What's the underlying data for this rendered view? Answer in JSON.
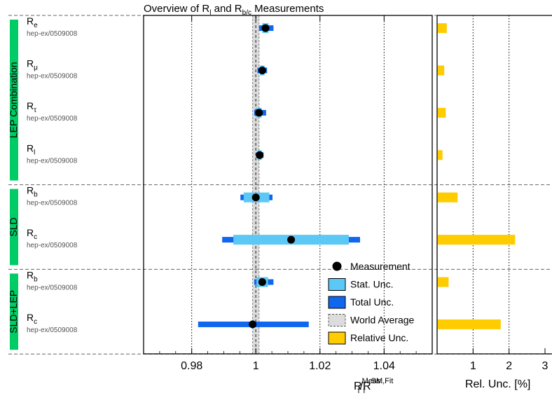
{
  "chart_data": {
    "type": "forest",
    "title_parts": {
      "pre": "Overview of R",
      "sub1": "l",
      "mid": " and R",
      "sub2": "b/c",
      "post": " Measurements"
    },
    "main_axis": {
      "xlim": [
        0.965,
        1.055
      ],
      "ticks": [
        0.98,
        1,
        1.02,
        1.04
      ],
      "tick_labels": [
        "0.98",
        "1",
        "1.02",
        "1.04"
      ],
      "xlabel": {
        "base1": "R",
        "sup1": "Meas.",
        "sub1": "f",
        "slash": "/",
        "base2": "R",
        "sup2": "SM,Fit",
        "sub2": "f"
      }
    },
    "world_average": {
      "center": 1.0,
      "lo": 0.999,
      "hi": 1.001
    },
    "rel_axis": {
      "xlim": [
        0,
        3
      ],
      "ticks": [
        1,
        2,
        3
      ],
      "tick_labels": [
        "1",
        "2",
        "3"
      ],
      "xlabel": "Rel. Unc. [%]"
    },
    "groups": [
      {
        "name": "LEP Combination",
        "start": 0,
        "end": 4
      },
      {
        "name": "SLD",
        "start": 4,
        "end": 6
      },
      {
        "name": "SLD+LEP",
        "start": 6,
        "end": 8
      }
    ],
    "rows": [
      {
        "base": "R",
        "sub": "e",
        "ref": "hep-ex/0509008",
        "value": 1.003,
        "stat": [
          1.002,
          1.004
        ],
        "total": [
          1.001,
          1.0055
        ],
        "rel": 0.25
      },
      {
        "base": "R",
        "sub": "μ",
        "ref": "hep-ex/0509008",
        "value": 1.002,
        "stat": [
          1.0013,
          1.0027
        ],
        "total": [
          1.0005,
          1.0035
        ],
        "rel": 0.18
      },
      {
        "base": "R",
        "sub": "τ",
        "ref": "hep-ex/0509008",
        "value": 1.001,
        "stat": [
          1.0002,
          1.0018
        ],
        "total": [
          0.9995,
          1.0032
        ],
        "rel": 0.22
      },
      {
        "base": "R",
        "sub": "l",
        "ref": "hep-ex/0509008",
        "value": 1.0012,
        "stat": [
          1.0005,
          1.0018
        ],
        "total": [
          1.0001,
          1.0024
        ],
        "rel": 0.13
      },
      {
        "base": "R",
        "sub": "b",
        "ref": "hep-ex/0509008",
        "value": 1.0,
        "stat": [
          0.9962,
          1.0042
        ],
        "total": [
          0.9952,
          1.0052
        ],
        "rel": 0.55
      },
      {
        "base": "R",
        "sub": "c",
        "ref": "hep-ex/0509008",
        "value": 1.011,
        "stat": [
          0.993,
          1.029
        ],
        "total": [
          0.9895,
          1.0325
        ],
        "rel": 2.15
      },
      {
        "base": "R",
        "sub": "b",
        "ref": "hep-ex/0509008",
        "value": 1.002,
        "stat": [
          1.0002,
          1.0038
        ],
        "total": [
          0.9995,
          1.0055
        ],
        "rel": 0.3
      },
      {
        "base": "R",
        "sub": "c",
        "ref": "hep-ex/0509008",
        "value": 0.999,
        "stat": [
          0.9988,
          0.9992
        ],
        "total": [
          0.982,
          1.0165
        ],
        "rel": 1.75
      }
    ],
    "legend": {
      "position": "bottom-right",
      "measurement": "Measurement",
      "stat": "Stat. Unc.",
      "total": "Total Unc.",
      "world": "World Average",
      "relative": "Relative Unc."
    },
    "colors": {
      "stat": "#5bc8f5",
      "total": "#1166ee",
      "relative": "#ffcc00",
      "group_band": "#00cc66",
      "world_fill": "#dcdcdc",
      "world_edge": "#555555"
    }
  }
}
